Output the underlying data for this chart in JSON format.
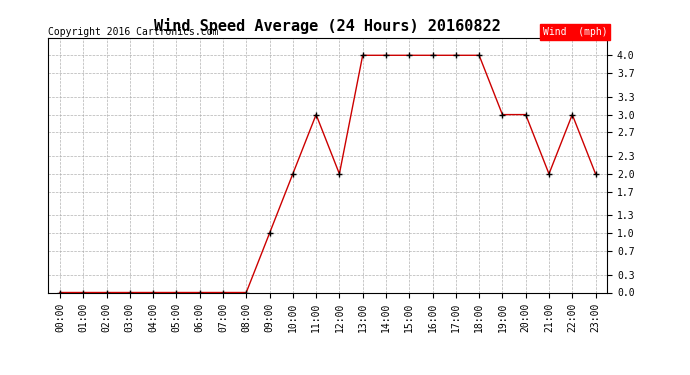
{
  "title": "Wind Speed Average (24 Hours) 20160822",
  "copyright": "Copyright 2016 Cartronics.com",
  "legend_label": "Wind  (mph)",
  "legend_bg": "#ff0000",
  "legend_text_color": "#ffffff",
  "x_labels": [
    "00:00",
    "01:00",
    "02:00",
    "03:00",
    "04:00",
    "05:00",
    "06:00",
    "07:00",
    "08:00",
    "09:00",
    "10:00",
    "11:00",
    "12:00",
    "13:00",
    "14:00",
    "15:00",
    "16:00",
    "17:00",
    "18:00",
    "19:00",
    "20:00",
    "21:00",
    "22:00",
    "23:00"
  ],
  "y_values": [
    0.0,
    0.0,
    0.0,
    0.0,
    0.0,
    0.0,
    0.0,
    0.0,
    0.0,
    1.0,
    2.0,
    3.0,
    2.0,
    4.0,
    4.0,
    4.0,
    4.0,
    4.0,
    4.0,
    3.0,
    3.0,
    2.0,
    3.0,
    2.0
  ],
  "line_color": "#cc0000",
  "marker_color": "#000000",
  "background_color": "#ffffff",
  "plot_bg_color": "#ffffff",
  "grid_color": "#aaaaaa",
  "ylim": [
    0.0,
    4.3
  ],
  "yticks": [
    0.0,
    0.3,
    0.7,
    1.0,
    1.3,
    1.7,
    2.0,
    2.3,
    2.7,
    3.0,
    3.3,
    3.7,
    4.0
  ],
  "title_fontsize": 11,
  "tick_fontsize": 7,
  "copyright_fontsize": 7
}
